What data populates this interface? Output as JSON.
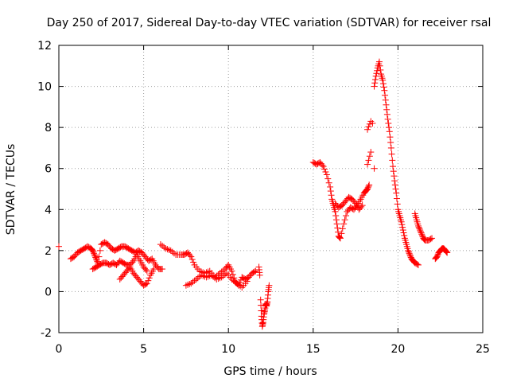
{
  "chart_data": {
    "type": "scatter",
    "title": "Day 250 of 2017, Sidereal Day-to-day VTEC variation (SDTVAR) for receiver rsal",
    "xlabel": "GPS time / hours",
    "ylabel": "SDTVAR / TECUs",
    "xlim": [
      0,
      25
    ],
    "ylim": [
      -2,
      12
    ],
    "xticks": [
      0,
      5,
      10,
      15,
      20,
      25
    ],
    "yticks": [
      -2,
      0,
      2,
      4,
      6,
      8,
      10,
      12
    ],
    "grid": true,
    "marker": "+",
    "series": [
      {
        "name": "SDTVAR",
        "color": "#ff0000",
        "x": [
          0.0,
          0.7,
          0.9,
          1.1,
          1.3,
          1.5,
          1.7,
          1.9,
          2.0,
          2.1,
          2.2,
          2.3,
          2.5,
          2.7,
          2.9,
          3.1,
          3.3,
          3.5,
          3.7,
          3.9,
          4.1,
          4.3,
          4.5,
          4.7,
          4.9,
          5.1,
          5.3,
          5.5,
          5.7,
          5.9,
          6.1,
          2.0,
          2.2,
          2.4,
          2.6,
          2.8,
          3.0,
          3.2,
          3.4,
          3.6,
          3.8,
          4.0,
          4.2,
          4.4,
          4.6,
          4.8,
          5.0,
          5.2,
          3.6,
          3.8,
          4.0,
          4.2,
          4.4,
          4.6,
          4.8,
          5.0,
          5.2,
          5.4,
          5.6,
          6.0,
          6.3,
          6.6,
          6.9,
          7.2,
          7.4,
          7.6,
          7.8,
          8.0,
          8.3,
          8.6,
          8.9,
          9.2,
          9.5,
          9.8,
          10.0,
          10.2,
          10.4,
          10.6,
          10.8,
          11.0,
          11.2,
          11.4,
          11.6,
          7.5,
          7.8,
          8.1,
          8.4,
          8.7,
          9.0,
          9.3,
          9.6,
          9.9,
          10.2,
          10.5,
          10.8,
          11.1,
          11.8,
          11.85,
          11.9,
          11.95,
          12.0,
          12.05,
          12.1,
          12.15,
          12.2,
          12.25,
          12.3,
          12.35,
          12.4,
          15.0,
          15.2,
          15.4,
          15.6,
          15.8,
          16.0,
          16.1,
          16.2,
          16.3,
          16.4,
          16.5,
          16.6,
          16.8,
          17.0,
          17.2,
          17.4,
          17.6,
          17.8,
          18.0,
          18.1,
          18.2,
          18.3,
          16.3,
          16.5,
          16.7,
          16.9,
          17.1,
          17.3,
          17.5,
          17.7,
          17.9,
          18.2,
          18.4,
          18.5,
          18.6,
          18.7,
          18.8,
          18.9,
          19.0,
          19.1,
          19.2,
          19.3,
          19.4,
          19.5,
          19.6,
          19.7,
          19.8,
          19.9,
          20.0,
          20.1,
          20.2,
          20.3,
          20.4,
          20.5,
          20.6,
          20.7,
          20.8,
          20.9,
          21.0,
          21.2,
          18.2,
          18.4,
          18.6,
          21.0,
          21.1,
          21.2,
          21.3,
          21.4,
          21.5,
          21.6,
          21.8,
          22.0,
          22.2,
          22.3,
          22.4,
          22.5,
          22.6,
          22.7,
          22.8,
          22.9
        ],
        "y": [
          2.2,
          1.6,
          1.7,
          1.9,
          2.0,
          2.1,
          2.2,
          2.1,
          2.0,
          1.8,
          1.6,
          1.4,
          2.3,
          2.4,
          2.3,
          2.1,
          2.0,
          2.1,
          2.2,
          2.2,
          2.1,
          2.0,
          1.9,
          2.0,
          1.9,
          1.7,
          1.5,
          1.6,
          1.3,
          1.1,
          1.1,
          1.1,
          1.2,
          1.3,
          1.4,
          1.4,
          1.3,
          1.4,
          1.3,
          1.5,
          1.4,
          1.3,
          1.3,
          1.5,
          1.8,
          1.5,
          1.2,
          1.0,
          0.6,
          0.8,
          1.0,
          1.2,
          0.9,
          0.7,
          0.5,
          0.3,
          0.4,
          0.8,
          1.1,
          2.3,
          2.1,
          2.0,
          1.8,
          1.8,
          1.8,
          1.9,
          1.7,
          1.3,
          1.0,
          0.9,
          1.0,
          0.7,
          0.9,
          1.1,
          1.3,
          1.0,
          0.5,
          0.3,
          0.7,
          0.6,
          0.7,
          0.9,
          1.0,
          0.3,
          0.4,
          0.6,
          0.8,
          0.7,
          0.8,
          0.6,
          0.7,
          0.9,
          0.6,
          0.4,
          0.2,
          0.5,
          1.2,
          0.8,
          -0.4,
          -1.2,
          -1.7,
          -1.5,
          -1.1,
          -0.9,
          -0.6,
          -0.7,
          -0.5,
          0.0,
          0.3,
          6.3,
          6.2,
          6.3,
          6.1,
          5.7,
          5.1,
          4.5,
          4.2,
          3.9,
          3.3,
          2.7,
          2.6,
          3.3,
          3.9,
          4.1,
          4.0,
          4.2,
          4.5,
          4.8,
          4.9,
          5.0,
          5.2,
          4.3,
          4.1,
          4.2,
          4.4,
          4.6,
          4.5,
          4.3,
          4.0,
          4.2,
          6.2,
          6.8,
          8.2,
          10.0,
          10.5,
          10.9,
          11.2,
          10.6,
          10.3,
          9.8,
          9.1,
          8.4,
          7.8,
          7.0,
          6.1,
          5.4,
          4.8,
          4.0,
          3.7,
          3.4,
          3.0,
          2.6,
          2.3,
          2.0,
          1.8,
          1.6,
          1.5,
          1.4,
          1.3,
          7.9,
          8.3,
          6.0,
          3.8,
          3.5,
          3.2,
          3.0,
          2.8,
          2.6,
          2.5,
          2.5,
          2.6,
          1.6,
          1.7,
          1.9,
          2.0,
          2.1,
          2.1,
          2.0,
          1.9
        ]
      }
    ]
  }
}
